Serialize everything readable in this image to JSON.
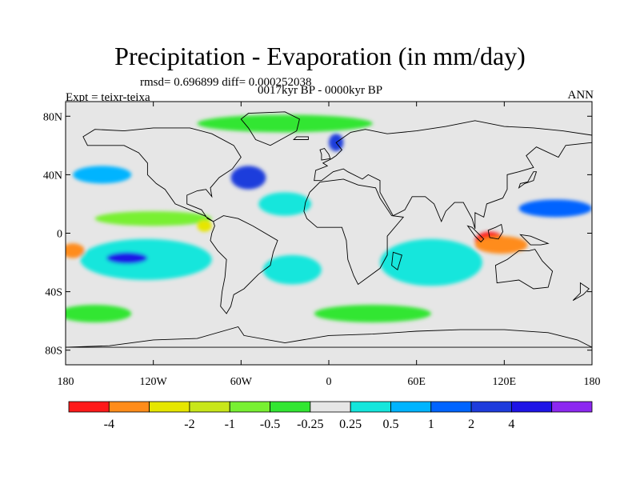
{
  "title": "Precipitation - Evaporation (in mm/day)",
  "stats": "rmsd= 0.696899 diff= 0.000252038",
  "period": "0017kyr BP - 0000kyr BP",
  "experiment": "Expt = teixr-teixa",
  "season": "ANN",
  "map": {
    "projection": "cylindrical-equidistant",
    "lon_range": [
      -180,
      180
    ],
    "lat_range": [
      -90,
      90
    ],
    "lat_ticks": [
      {
        "value": 80,
        "label": "80N"
      },
      {
        "value": 40,
        "label": "40N"
      },
      {
        "value": 0,
        "label": "0"
      },
      {
        "value": -40,
        "label": "40S"
      },
      {
        "value": -80,
        "label": "80S"
      }
    ],
    "lon_ticks": [
      {
        "value": -180,
        "label": "180"
      },
      {
        "value": -120,
        "label": "120W"
      },
      {
        "value": -60,
        "label": "60W"
      },
      {
        "value": 0,
        "label": "0"
      },
      {
        "value": 60,
        "label": "60E"
      },
      {
        "value": 120,
        "label": "120E"
      },
      {
        "value": 180,
        "label": "180"
      }
    ],
    "background_color": "#e6e6e6",
    "land_outline_color": "#000000"
  },
  "colorbar": {
    "colors": [
      "#ff1a1a",
      "#ff8c1a",
      "#e6e600",
      "#c8e61a",
      "#78f032",
      "#32e632",
      "#e6e6e6",
      "#14e6dc",
      "#00b4ff",
      "#0064ff",
      "#1e3cdc",
      "#1e14e6",
      "#8c28f0"
    ],
    "labels": [
      "-4",
      "-2",
      "-1",
      "-0.5",
      "-0.25",
      "0.25",
      "0.5",
      "1",
      "2",
      "4"
    ],
    "label_after_box": [
      0,
      2,
      3,
      4,
      5,
      6,
      7,
      8,
      9,
      10
    ]
  },
  "fields": [
    {
      "name": "pacific-south-subtropical-blue",
      "color": "#1e3cdc",
      "lon": -135,
      "lat": -17,
      "rx": 28,
      "ry": 8
    },
    {
      "name": "pacific-south-subtropical-cyan",
      "color": "#14e6dc",
      "lon": -125,
      "lat": -18,
      "rx": 45,
      "ry": 14
    },
    {
      "name": "pacific-south-subtropical-purple",
      "color": "#1e14e6",
      "lon": -138,
      "lat": -17,
      "rx": 14,
      "ry": 4
    },
    {
      "name": "indian-ocean-blue",
      "color": "#1e3cdc",
      "lon": 65,
      "lat": -15,
      "rx": 22,
      "ry": 10
    },
    {
      "name": "indian-ocean-cyan",
      "color": "#14e6dc",
      "lon": 70,
      "lat": -20,
      "rx": 35,
      "ry": 16
    },
    {
      "name": "indonesia-red",
      "color": "#ff1a1a",
      "lon": 110,
      "lat": -5,
      "rx": 10,
      "ry": 6
    },
    {
      "name": "indonesia-orange",
      "color": "#ff8c1a",
      "lon": 118,
      "lat": -8,
      "rx": 18,
      "ry": 6
    },
    {
      "name": "east-pacific-orange",
      "color": "#ff8c1a",
      "lon": -175,
      "lat": -12,
      "rx": 8,
      "ry": 5
    },
    {
      "name": "north-pacific-blue",
      "color": "#0064ff",
      "lon": 155,
      "lat": 17,
      "rx": 25,
      "ry": 6
    },
    {
      "name": "north-atlantic-blue",
      "color": "#1e3cdc",
      "lon": -55,
      "lat": 38,
      "rx": 12,
      "ry": 8
    },
    {
      "name": "north-europe-blue",
      "color": "#1e3cdc",
      "lon": 5,
      "lat": 62,
      "rx": 5,
      "ry": 6
    },
    {
      "name": "southern-ocean-green",
      "color": "#32e632",
      "lon": 30,
      "lat": -55,
      "rx": 40,
      "ry": 6
    },
    {
      "name": "south-pacific-green",
      "color": "#32e632",
      "lon": -160,
      "lat": -55,
      "rx": 25,
      "ry": 6
    },
    {
      "name": "tropical-atlantic-cyan",
      "color": "#14e6dc",
      "lon": -30,
      "lat": 20,
      "rx": 18,
      "ry": 8
    },
    {
      "name": "central-pacific-green",
      "color": "#78f032",
      "lon": -120,
      "lat": 10,
      "rx": 40,
      "ry": 5
    },
    {
      "name": "north-pacific-cyan",
      "color": "#00b4ff",
      "lon": -155,
      "lat": 40,
      "rx": 20,
      "ry": 6
    },
    {
      "name": "arctic-green",
      "color": "#32e632",
      "lon": -30,
      "lat": 75,
      "rx": 60,
      "ry": 6
    },
    {
      "name": "south-atlantic-cyan",
      "color": "#14e6dc",
      "lon": -25,
      "lat": -25,
      "rx": 20,
      "ry": 10
    },
    {
      "name": "south-america-yellow",
      "color": "#e6e600",
      "lon": -85,
      "lat": 5,
      "rx": 5,
      "ry": 4
    }
  ]
}
